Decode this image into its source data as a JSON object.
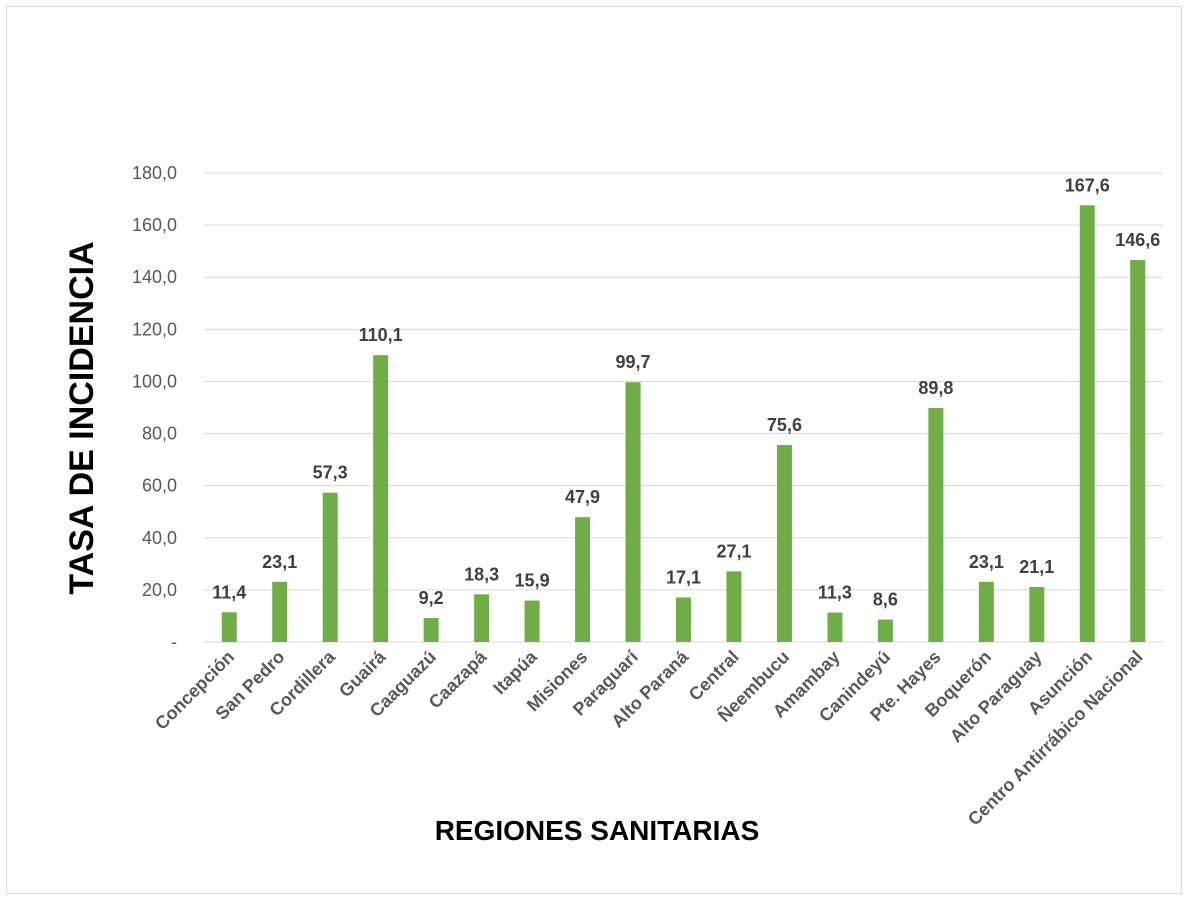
{
  "chart_data": {
    "type": "bar",
    "title": "",
    "xlabel": "REGIONES SANITARIAS",
    "ylabel": "TASA DE INCIDENCIA",
    "ylim": [
      0,
      180
    ],
    "yticks": [
      {
        "value": 0,
        "label": "-"
      },
      {
        "value": 20,
        "label": "20,0"
      },
      {
        "value": 40,
        "label": "40,0"
      },
      {
        "value": 60,
        "label": "60,0"
      },
      {
        "value": 80,
        "label": "80,0"
      },
      {
        "value": 100,
        "label": "100,0"
      },
      {
        "value": 120,
        "label": "120,0"
      },
      {
        "value": 140,
        "label": "140,0"
      },
      {
        "value": 160,
        "label": "160,0"
      },
      {
        "value": 180,
        "label": "180,0"
      }
    ],
    "grid": true,
    "legend": "none",
    "bar_color": "#70ad47",
    "categories": [
      "Concepción",
      "San Pedro",
      "Cordillera",
      "Guairá",
      "Caaguazú",
      "Caazapá",
      "Itapúa",
      "Misiones",
      "Paraguarí",
      "Alto Paraná",
      "Central",
      "Ñeembucu",
      "Amambay",
      "Canindeyú",
      "Pte. Hayes",
      "Boquerón",
      "Alto Paraguay",
      "Asunción",
      "Centro Antirrábico Nacional"
    ],
    "values": [
      11.4,
      23.1,
      57.3,
      110.1,
      9.2,
      18.3,
      15.9,
      47.9,
      99.7,
      17.1,
      27.1,
      75.6,
      11.3,
      8.6,
      89.8,
      23.1,
      21.1,
      167.6,
      146.6
    ],
    "data_labels": [
      "11,4",
      "23,1",
      "57,3",
      "110,1",
      "9,2",
      "18,3",
      "15,9",
      "47,9",
      "99,7",
      "17,1",
      "27,1",
      "75,6",
      "11,3",
      "8,6",
      "89,8",
      "23,1",
      "21,1",
      "167,6",
      "146,6"
    ]
  }
}
